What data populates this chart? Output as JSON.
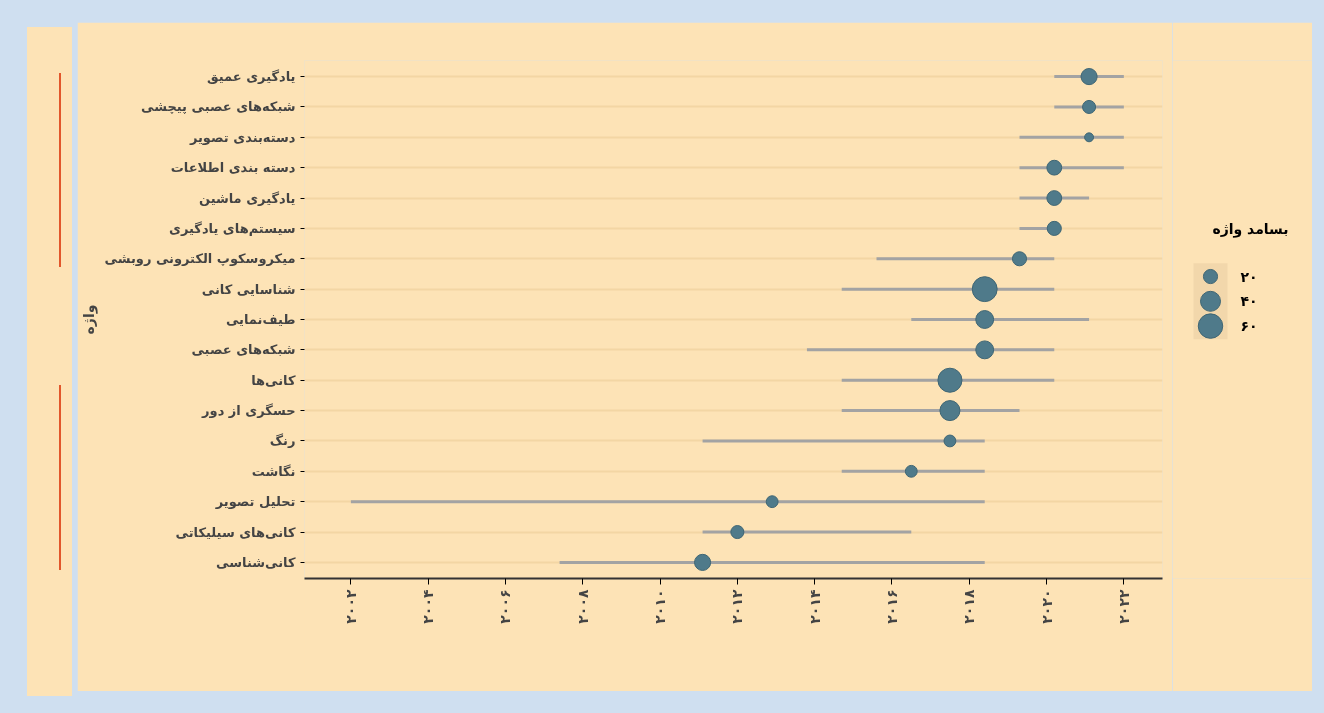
{
  "chart_data": {
    "type": "bubble",
    "orientation": "horizontal",
    "ylabel": "واژه",
    "legend_title": "بسامد واژه",
    "grid": "y",
    "marker": "circle",
    "categories": [
      "یادگیری عمیق",
      "شبکه‌های عصبی پیچشی",
      "دسته‌بندی تصویر",
      "دسته بندی اطلاعات",
      "یادگیری ماشین",
      "سیستم‌های یادگیری",
      "میکروسکوپ الکترونی روبشی",
      "شناسایی کانی",
      "طیف‌نمایی",
      "شبکه‌های عصبی",
      "کانی‌ها",
      "حسگری از دور",
      "رنگ",
      "نگاشت",
      "تحلیل تصویر",
      "کانی‌های سیلیکاتی",
      "کانی‌شناسی"
    ],
    "series": [
      {
        "color": "#4f7a8a",
        "values": [
          2021.1,
          2021.1,
          2021.1,
          2020.2,
          2020.2,
          2020.2,
          2019.3,
          2018.4,
          2018.4,
          2018.4,
          2017.5,
          2017.5,
          2017.5,
          2016.5,
          2012.9,
          2012.0,
          2011.1
        ],
        "sizes": [
          26,
          17,
          8,
          22,
          22,
          20,
          20,
          62,
          32,
          32,
          58,
          40,
          14,
          14,
          14,
          17,
          26
        ],
        "errors": [
          [
            2020.2,
            2022.0
          ],
          [
            2020.2,
            2022.0
          ],
          [
            2019.3,
            2022.0
          ],
          [
            2019.3,
            2022.0
          ],
          [
            2019.3,
            2021.1
          ],
          [
            2019.3,
            2020.2
          ],
          [
            2015.6,
            2020.2
          ],
          [
            2014.7,
            2020.2
          ],
          [
            2016.5,
            2021.1
          ],
          [
            2013.8,
            2020.2
          ],
          [
            2014.7,
            2020.2
          ],
          [
            2014.7,
            2019.3
          ],
          [
            2011.1,
            2018.4
          ],
          [
            2014.7,
            2018.4
          ],
          [
            2002.0,
            2018.4
          ],
          [
            2011.1,
            2016.5
          ],
          [
            2007.4,
            2018.4
          ]
        ]
      }
    ],
    "size_legend": [
      {
        "value": 20,
        "label": "۲۰"
      },
      {
        "value": 40,
        "label": "۴۰"
      },
      {
        "value": 60,
        "label": "۶۰"
      }
    ],
    "xlim": [
      2000.8,
      2023.0
    ],
    "xticks": [
      {
        "value": 2002,
        "label": "۲۰۰۲"
      },
      {
        "value": 2004,
        "label": "۲۰۰۴"
      },
      {
        "value": 2006,
        "label": "۲۰۰۶"
      },
      {
        "value": 2008,
        "label": "۲۰۰۸"
      },
      {
        "value": 2010,
        "label": "۲۰۱۰"
      },
      {
        "value": 2012,
        "label": "۲۰۱۲"
      },
      {
        "value": 2014,
        "label": "۲۰۱۴"
      },
      {
        "value": 2016,
        "label": "۲۰۱۶"
      },
      {
        "value": 2018,
        "label": "۲۰۱۸"
      },
      {
        "value": 2020,
        "label": "۲۰۲۰"
      },
      {
        "value": 2022,
        "label": "۲۰۲۲"
      }
    ]
  }
}
